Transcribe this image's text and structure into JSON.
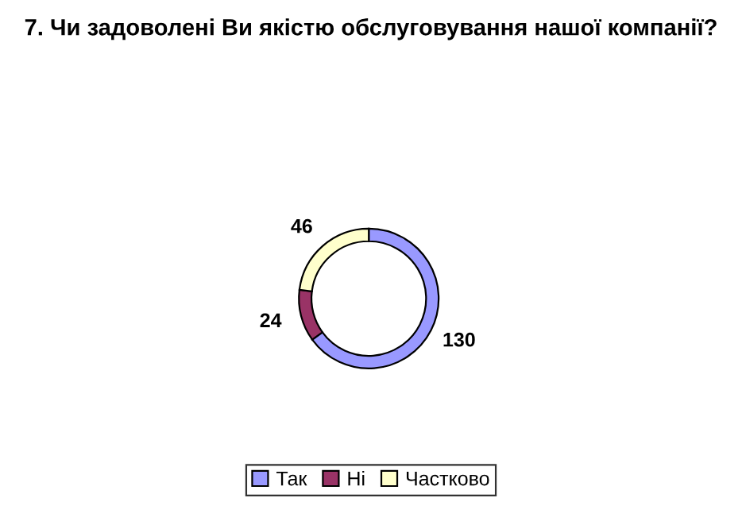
{
  "chart_data": {
    "type": "donut",
    "title": "7. Чи задоволені Ви якістю обслуговування нашої компанії?",
    "categories": [
      "Так",
      "Ні",
      "Частково"
    ],
    "values": [
      130,
      24,
      46
    ],
    "colors": [
      "#9999ff",
      "#993366",
      "#ffffcc"
    ],
    "data_labels": true,
    "legend": "bottom"
  }
}
